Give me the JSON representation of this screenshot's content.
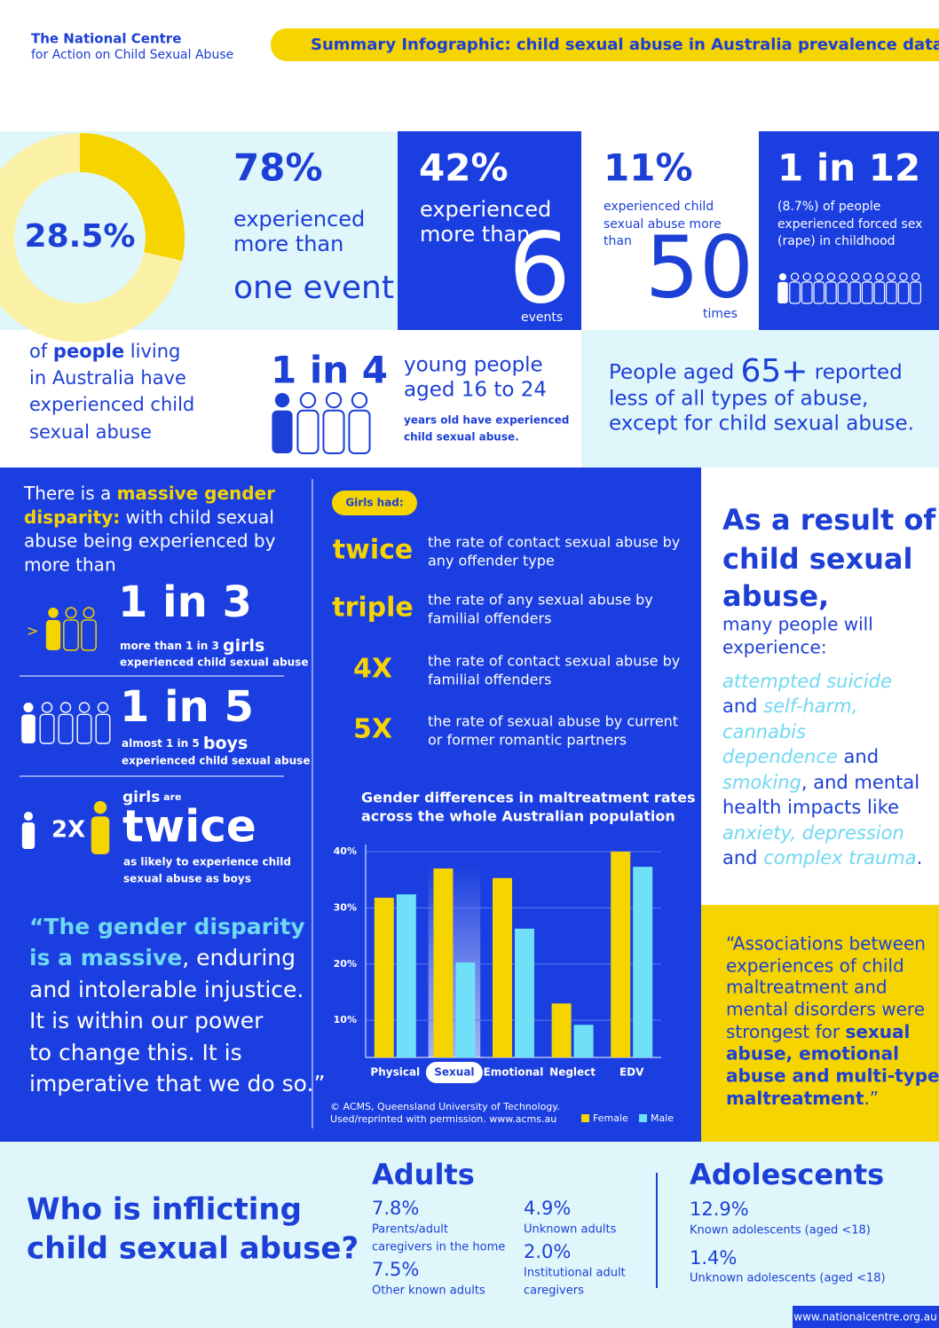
{
  "header": {
    "org_line1": "The National Centre",
    "org_line2": "for Action on Child Sexual Abuse",
    "title": "Summary Infographic: child sexual abuse in Australia prevalence data"
  },
  "chart_data": [
    {
      "type": "pie",
      "values": [
        28.5
      ],
      "value_labels": [
        "28.5%"
      ],
      "color": "#f5d400"
    },
    {
      "type": "bar",
      "title": "Gender differences in maltreatment rates",
      "subtitle": "across the whole Australian population",
      "categories": [
        "Physical",
        "Sexual",
        "Emotional",
        "Neglect",
        "EDV"
      ],
      "series": [
        {
          "name": "Female",
          "color": "#f5d400",
          "values": [
            31.8,
            37.0,
            35.3,
            13.0,
            40.0
          ]
        },
        {
          "name": "Male",
          "color": "#6fe0f7",
          "values": [
            32.4,
            20.3,
            26.3,
            9.2,
            37.3
          ]
        }
      ],
      "ylim": [
        3.4,
        40
      ],
      "yticks": [
        {
          "value": 10,
          "label": "10%"
        },
        {
          "value": 20,
          "label": "20%"
        },
        {
          "value": 30,
          "label": "30%"
        },
        {
          "value": 40,
          "label": "40%"
        }
      ],
      "grid": true,
      "annotations": [
        "© ACMS, Queensland University of Technology.",
        "Used/reprinted with permission. www.acms.au"
      ]
    }
  ],
  "prevalence": {
    "pre": "of ",
    "em": "people",
    "post": " living",
    "lines": [
      "in Australia have",
      "experienced child",
      "sexual abuse"
    ]
  },
  "stats": [
    {
      "value": "78%",
      "lines": [
        "experienced",
        "more than"
      ],
      "big": "one event"
    },
    {
      "value": "42%",
      "lines": [
        "experienced",
        "more than"
      ],
      "big": "6",
      "unit": "events"
    },
    {
      "value": "11%",
      "lines": [
        "experienced child",
        "sexual abuse more",
        "than"
      ],
      "big": "50",
      "unit": "times"
    },
    {
      "value": "1 in 12",
      "lines": [
        "(8.7%) of people",
        "experienced forced sex",
        "(rape) in childhood"
      ]
    }
  ],
  "young": {
    "value": "1 in 4",
    "lines": [
      "young people",
      "aged 16 to 24"
    ],
    "notes": [
      "years old have experienced",
      "child sexual abuse."
    ]
  },
  "older": {
    "pre": "People aged ",
    "age": "65+",
    "post": " reported",
    "lines": [
      "less of all types of abuse,",
      "except for child sexual abuse."
    ]
  },
  "gender": {
    "intro": {
      "pre": "There is a ",
      "em1": "massive gender",
      "em2": "disparity:",
      "post": " with child sexual",
      "lines": [
        "abuse being experienced by",
        "more than"
      ]
    },
    "girls": {
      "prefix": ">",
      "value": "1 in 3",
      "note_pre": "more than 1 in 3 ",
      "note_em": "girls",
      "note2": "experienced child sexual abuse"
    },
    "boys": {
      "value": "1 in 5",
      "note_pre": "almost 1 in 5 ",
      "note_em": "boys",
      "note2": "experienced child sexual abuse"
    },
    "twice": {
      "girls": "girls",
      "are": " are",
      "ratio": "2X",
      "word": "twice",
      "notes": [
        "as likely to experience child",
        "sexual abuse as boys"
      ]
    }
  },
  "quote": {
    "em": [
      "“The gender disparity",
      "is a massive"
    ],
    "rest": [
      ", enduring",
      "and intolerable injustice.",
      "It is within our power",
      "to change this. It is",
      "imperative that we do so.”"
    ]
  },
  "girls_had": {
    "label": "Girls had:",
    "rows": [
      {
        "mult": "twice",
        "text": [
          "the rate of contact sexual abuse by",
          "any offender type"
        ]
      },
      {
        "mult": "triple",
        "text": [
          "the rate of any sexual abuse by",
          "familial offenders"
        ]
      },
      {
        "mult": "4X",
        "text": [
          "the rate of contact sexual abuse by",
          "familial offenders"
        ]
      },
      {
        "mult": "5X",
        "text": [
          "the rate of sexual abuse by current",
          "or former romantic partners"
        ]
      }
    ]
  },
  "consequences": {
    "heading": [
      "As a result of",
      "child sexual",
      "abuse,"
    ],
    "lead": [
      "many people will",
      "experience:"
    ],
    "l1": "attempted suicide",
    "l2a": "and ",
    "l2b": "self-harm,",
    "l3": "cannabis",
    "l4a": "dependence",
    "l4b": " and",
    "l5a": "smoking",
    "l5b": ", and mental",
    "l6": "health impacts like",
    "l7": "anxiety, depression",
    "l8a": "and ",
    "l8b": "complex trauma",
    "l8c": "."
  },
  "associations": {
    "lines": [
      "“Associations between",
      "experiences of child",
      "maltreatment and",
      "mental disorders were"
    ],
    "pre": "strongest for ",
    "em": [
      "sexual",
      "abuse, emotional",
      "abuse and multi-type",
      "maltreatment"
    ],
    "post": ".”"
  },
  "perpetrators": {
    "heading": [
      "Who is inflicting",
      "child sexual abuse?"
    ],
    "adults": {
      "title": "Adults",
      "items": [
        {
          "value": "7.8%",
          "lines": [
            "Parents/adult",
            "caregivers in the home"
          ]
        },
        {
          "value": "4.9%",
          "lines": [
            "Unknown adults"
          ]
        },
        {
          "value": "7.5%",
          "lines": [
            "Other known adults"
          ]
        },
        {
          "value": "2.0%",
          "lines": [
            "Institutional adult",
            "caregivers"
          ]
        }
      ]
    },
    "adolescents": {
      "title": "Adolescents",
      "items": [
        {
          "value": "12.9%",
          "lines": [
            "Known adolescents (aged <18)"
          ]
        },
        {
          "value": "1.4%",
          "lines": [
            "Unknown adolescents (aged <18)"
          ]
        }
      ]
    }
  },
  "footer": {
    "url": "www.nationalcentre.org.au"
  }
}
